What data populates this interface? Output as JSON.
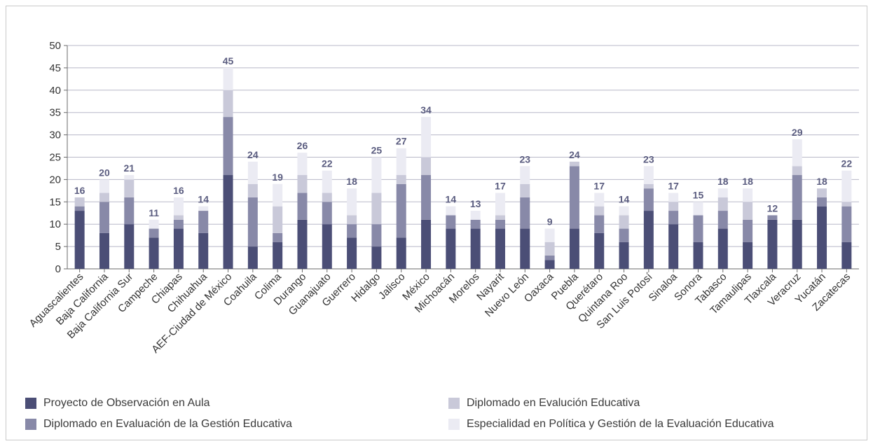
{
  "chart_data": {
    "type": "bar",
    "stacked": true,
    "categories": [
      "Aguascalientes",
      "Baja California",
      "Baja California Sur",
      "Campeche",
      "Chiapas",
      "Chihuahua",
      "AEF-Ciudad de México",
      "Coahuila",
      "Colima",
      "Durango",
      "Guanajuato",
      "Guerrero",
      "Hidalgo",
      "Jalisco",
      "México",
      "Michoacán",
      "Morelos",
      "Nayarit",
      "Nuevo León",
      "Oaxaca",
      "Puebla",
      "Querétaro",
      "Quintana Roo",
      "San Luis Potosí",
      "Sinaloa",
      "Sonora",
      "Tabasco",
      "Tamaulipas",
      "Tlaxcala",
      "Veracruz",
      "Yucatán",
      "Zacatecas"
    ],
    "series": [
      {
        "name": "Proyecto de Observación en Aula",
        "color": "#4b4e76",
        "values": [
          13,
          8,
          10,
          7,
          9,
          8,
          21,
          5,
          6,
          11,
          10,
          7,
          5,
          7,
          11,
          9,
          9,
          9,
          9,
          2,
          9,
          8,
          6,
          13,
          10,
          6,
          9,
          6,
          11,
          11,
          14,
          6
        ]
      },
      {
        "name": "Diplomado en Evaluación de la Gestión Educativa",
        "color": "#8889a8",
        "values": [
          1,
          7,
          6,
          2,
          2,
          5,
          13,
          11,
          2,
          6,
          5,
          3,
          5,
          12,
          10,
          3,
          2,
          2,
          7,
          1,
          14,
          4,
          3,
          5,
          3,
          6,
          4,
          5,
          1,
          10,
          2,
          8
        ]
      },
      {
        "name": "Diplomado en Evalución Educativa",
        "color": "#c9c9d9",
        "values": [
          2,
          2,
          4,
          0,
          1,
          0,
          6,
          3,
          6,
          4,
          2,
          2,
          7,
          2,
          4,
          0,
          0,
          1,
          3,
          3,
          1,
          2,
          3,
          1,
          2,
          0,
          3,
          4,
          0,
          2,
          2,
          1
        ]
      },
      {
        "name": "Especialidad en Política y Gestión de la Evaluación Educativa",
        "color": "#ebebf3",
        "values": [
          0,
          3,
          1,
          2,
          4,
          1,
          5,
          5,
          5,
          5,
          5,
          6,
          8,
          6,
          9,
          2,
          2,
          5,
          4,
          3,
          0,
          3,
          2,
          4,
          2,
          3,
          2,
          3,
          0,
          6,
          0,
          7
        ]
      }
    ],
    "totals": [
      16,
      20,
      21,
      11,
      16,
      14,
      45,
      24,
      19,
      26,
      22,
      18,
      25,
      27,
      34,
      14,
      13,
      17,
      23,
      9,
      24,
      17,
      14,
      23,
      17,
      15,
      18,
      18,
      12,
      29,
      18,
      22
    ],
    "ylim": [
      0,
      50
    ],
    "yticks": [
      0,
      5,
      10,
      15,
      20,
      25,
      30,
      35,
      40,
      45,
      50
    ],
    "grid": true,
    "legend_position": "bottom",
    "total_label_color": "#5b5d80"
  },
  "legend": [
    {
      "label": "Proyecto de Observación en Aula",
      "color": "#4b4e76"
    },
    {
      "label": "Diplomado en Evalución Educativa",
      "color": "#c9c9d9"
    },
    {
      "label": "Diplomado en Evaluación de la Gestión Educativa",
      "color": "#8889a8"
    },
    {
      "label": "Especialidad en Política y Gestión de la Evaluación Educativa",
      "color": "#ebebf3"
    }
  ]
}
